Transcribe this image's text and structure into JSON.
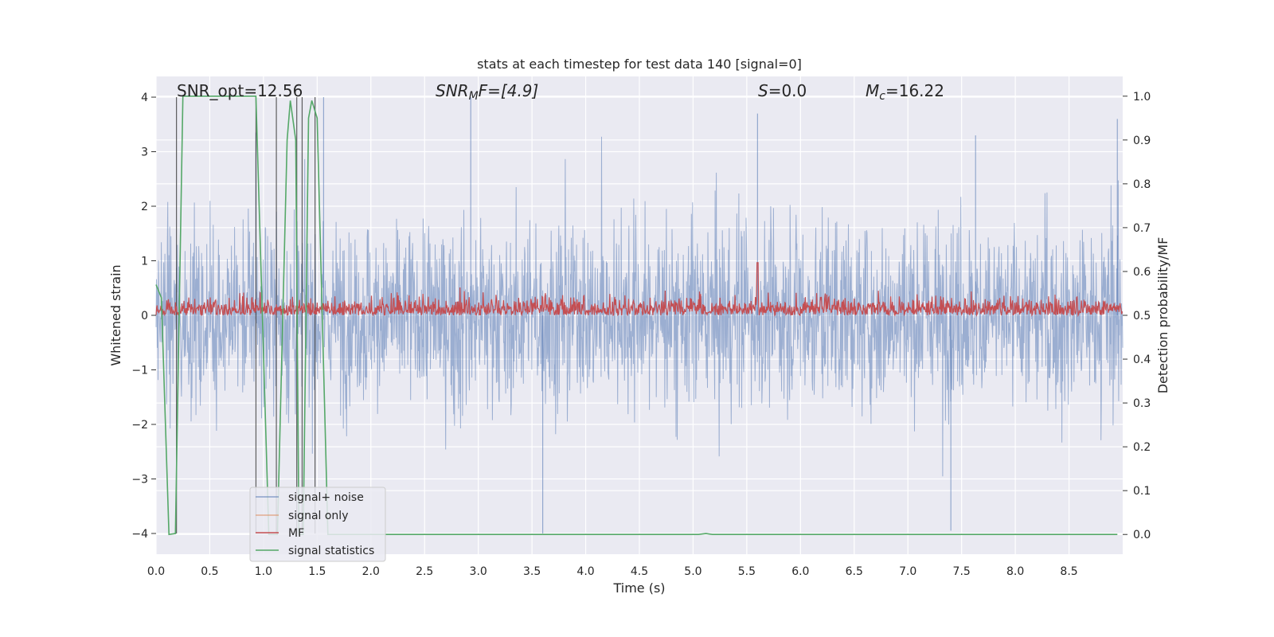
{
  "chart_data": {
    "type": "line",
    "title": "stats at each timestep for test data 140 [signal=0]",
    "xlabel": "Time (s)",
    "ylabel_left": "Whitened strain",
    "ylabel_right": "Detection probability/MF",
    "xlim": [
      0.0,
      9.0
    ],
    "ylim_left": [
      -4.38,
      4.38
    ],
    "ylim_right": [
      -0.045,
      1.045
    ],
    "xticks": [
      "0.0",
      "0.5",
      "1.0",
      "1.5",
      "2.0",
      "2.5",
      "3.0",
      "3.5",
      "4.0",
      "4.5",
      "5.0",
      "5.5",
      "6.0",
      "6.5",
      "7.0",
      "7.5",
      "8.0",
      "8.5"
    ],
    "yticks_left": [
      "−4",
      "−3",
      "−2",
      "−1",
      "0",
      "1",
      "2",
      "3",
      "4"
    ],
    "yticks_right": [
      "0.0",
      "0.1",
      "0.2",
      "0.3",
      "0.4",
      "0.5",
      "0.6",
      "0.7",
      "0.8",
      "0.9",
      "1.0"
    ],
    "grid": true,
    "legend_position": "lower-left",
    "annotations": {
      "snr_opt": "SNR_opt=12.56",
      "snr_mf_sym": "SNR",
      "snr_mf_sub": "M",
      "snr_mf_tail": "F=[4.9]",
      "s_sym": "S",
      "s_val": "=0.0",
      "mc_sym": "M",
      "mc_sub": "c",
      "mc_val": "=16.22"
    },
    "series": [
      {
        "name": "signal+ noise",
        "axis": "left",
        "color": "#4c72b0",
        "note_level": "noise band mostly within ±2.4, peaks near ±4",
        "peaks": [
          {
            "t": 0.93,
            "v": 3.35
          },
          {
            "t": 1.56,
            "v": 4.0
          },
          {
            "t": 2.93,
            "v": 4.0
          },
          {
            "t": 3.6,
            "v": -4.0
          },
          {
            "t": 5.6,
            "v": 3.7
          },
          {
            "t": 7.4,
            "v": -3.95
          },
          {
            "t": 7.63,
            "v": 3.3
          },
          {
            "t": 8.95,
            "v": 3.6
          }
        ]
      },
      {
        "name": "signal only",
        "axis": "left",
        "color": "#dd8452",
        "values": []
      },
      {
        "name": "MF",
        "axis": "right",
        "color": "#c44e52",
        "baseline": 0.5,
        "range": [
          0.5,
          0.58
        ],
        "peak": {
          "t": 5.6,
          "v": 0.62
        }
      },
      {
        "name": "signal statistics",
        "axis": "right",
        "color": "#55a868",
        "points": [
          [
            0.0,
            0.57
          ],
          [
            0.05,
            0.54
          ],
          [
            0.12,
            0.0
          ],
          [
            0.18,
            0.002
          ],
          [
            0.25,
            1.0
          ],
          [
            0.93,
            1.0
          ],
          [
            1.05,
            0.0
          ],
          [
            1.13,
            0.0
          ],
          [
            1.22,
            0.9
          ],
          [
            1.25,
            0.99
          ],
          [
            1.3,
            0.9
          ],
          [
            1.33,
            0.0
          ],
          [
            1.37,
            0.0
          ],
          [
            1.42,
            0.95
          ],
          [
            1.45,
            0.99
          ],
          [
            1.5,
            0.95
          ],
          [
            1.6,
            0.0
          ],
          [
            5.05,
            0.0
          ],
          [
            5.12,
            0.002
          ],
          [
            5.18,
            0.0
          ],
          [
            8.95,
            0.0
          ]
        ]
      }
    ],
    "vertical_lines": [
      0.19,
      0.93,
      1.12,
      1.31,
      1.36,
      1.48
    ]
  }
}
